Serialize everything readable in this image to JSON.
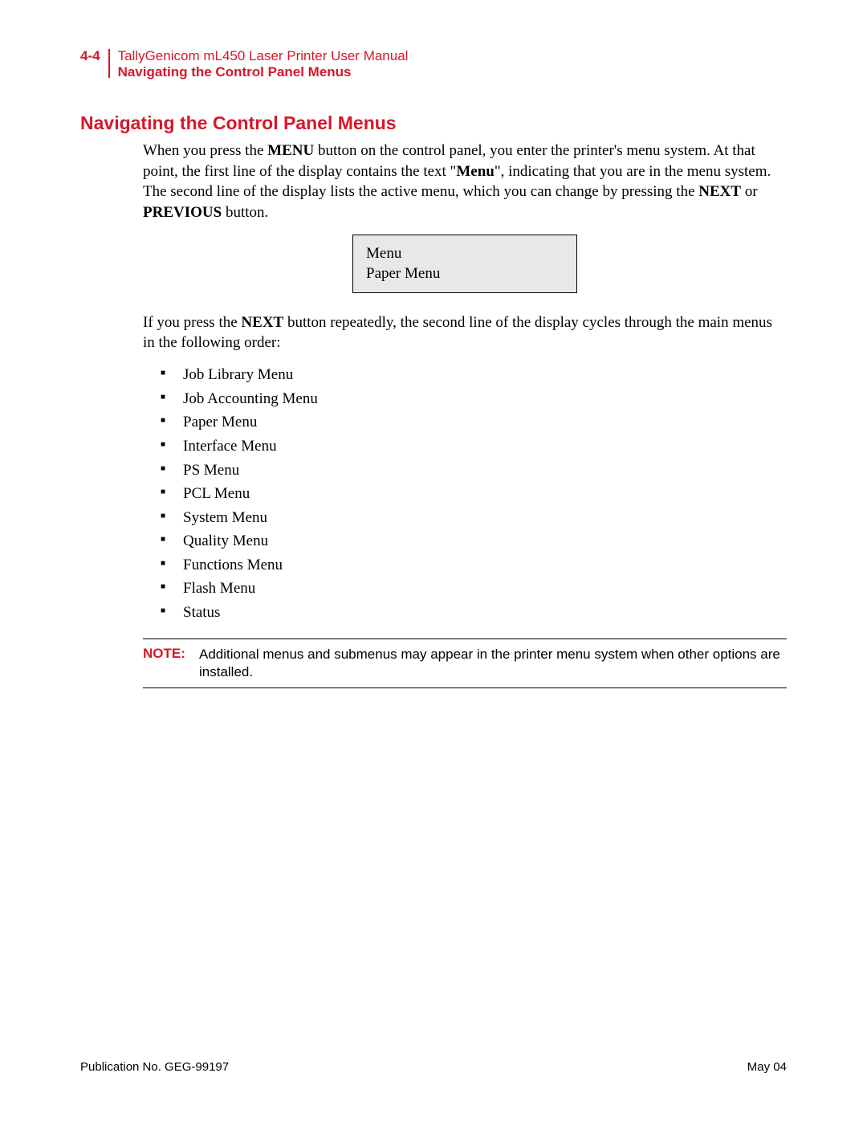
{
  "header": {
    "page_number": "4-4",
    "title_line1": "TallyGenicom mL450 Laser Printer User Manual",
    "title_line2": "Navigating the Control Panel Menus"
  },
  "section": {
    "heading": "Navigating the Control Panel Menus",
    "para1_pre": "When you press the ",
    "para1_bold1": "MENU",
    "para1_mid1": " button on the control panel, you enter the printer's menu system. At that point, the first line of the display contains the text \"",
    "para1_bold2": "Menu",
    "para1_mid2": "\", indicating that you are in the menu system. The second line of the display lists the active menu, which you can change by pressing the ",
    "para1_bold3": "NEXT",
    "para1_mid3": " or ",
    "para1_bold4": "PREVIOUS",
    "para1_post": " button.",
    "display": {
      "line1": "Menu",
      "line2": "Paper Menu",
      "background_color": "#e8e8e8",
      "border_color": "#000000"
    },
    "para2_pre": "If you press the ",
    "para2_bold": "NEXT",
    "para2_post": " button repeatedly, the second line of the display cycles through the main menus in the following order:",
    "menu_items": [
      "Job Library Menu",
      "Job Accounting Menu",
      "Paper Menu",
      "Interface Menu",
      "PS Menu",
      "PCL Menu",
      "System Menu",
      "Quality Menu",
      "Functions Menu",
      "Flash Menu",
      "Status"
    ],
    "note": {
      "label": "NOTE:",
      "text": "Additional menus and submenus may appear in the printer menu system when other options are installed."
    }
  },
  "footer": {
    "left": "Publication No. GEG-99197",
    "right": "May 04"
  },
  "colors": {
    "accent_red": "#d6172a",
    "text_black": "#000000",
    "page_bg": "#ffffff"
  },
  "typography": {
    "body_font": "Georgia serif",
    "ui_font": "Arial sans-serif",
    "heading_size_pt": 17,
    "body_size_pt": 14,
    "note_size_pt": 13,
    "footer_size_pt": 11
  }
}
